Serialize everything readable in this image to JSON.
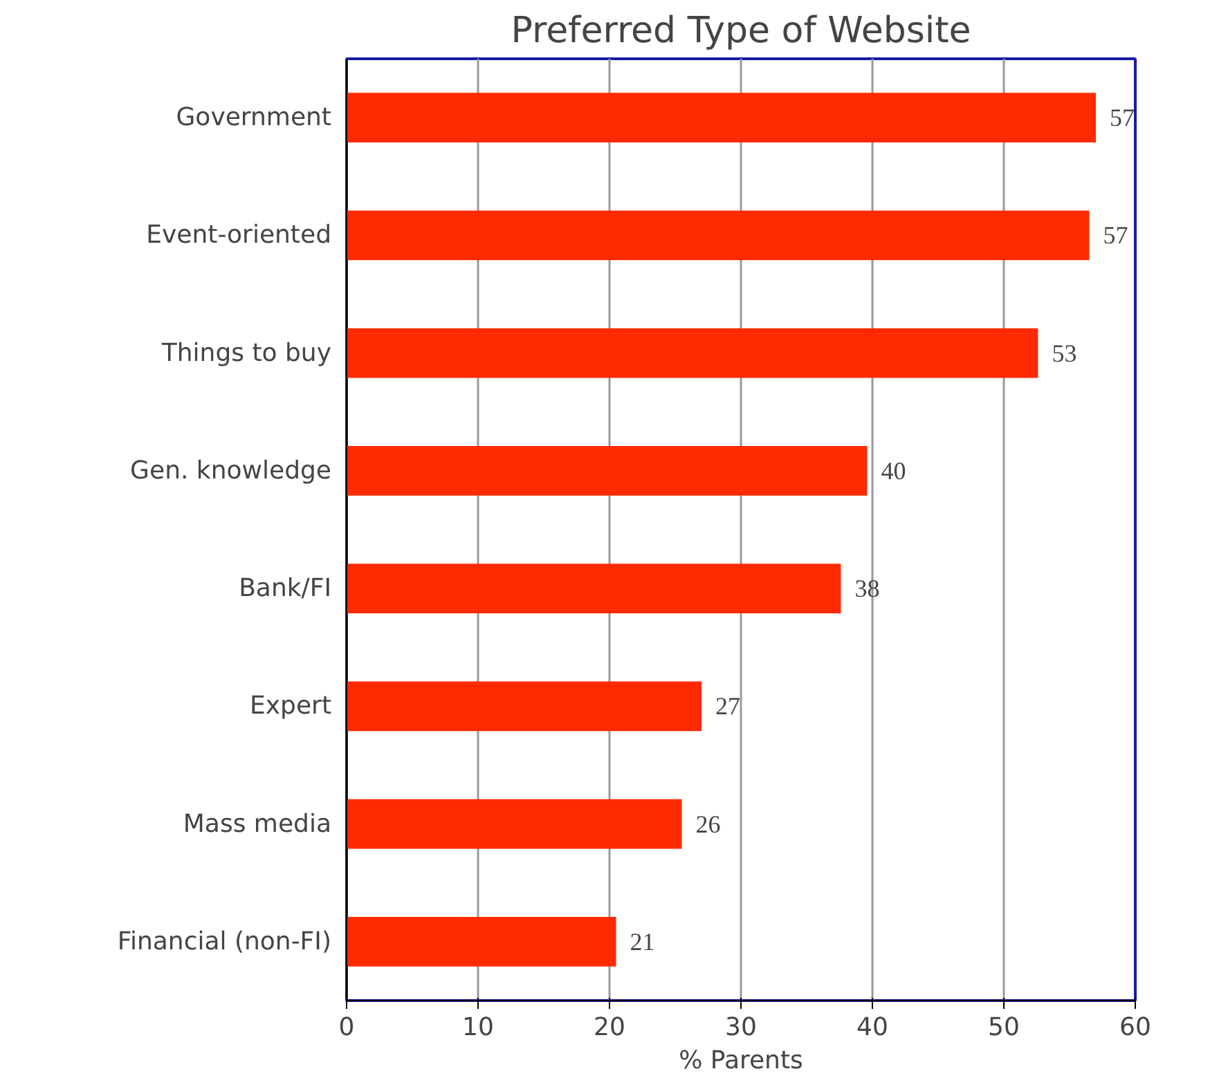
{
  "chart_data": {
    "type": "bar",
    "orientation": "horizontal",
    "title": "Preferred Type of Website",
    "xlabel": "% Parents",
    "categories": [
      "Government",
      "Event-oriented",
      "Things to buy",
      "Gen. knowledge",
      "Bank/FI",
      "Expert",
      "Mass media",
      "Financial (non-FI)"
    ],
    "values": [
      57.0,
      56.5,
      52.6,
      39.6,
      37.6,
      27.0,
      25.5,
      20.5
    ],
    "value_labels": [
      "57",
      "57",
      "53",
      "40",
      "38",
      "27",
      "26",
      "21"
    ],
    "color": "#ff2a00",
    "xlim": [
      0,
      60
    ],
    "xticks": [
      0,
      10,
      20,
      30,
      40,
      50,
      60
    ],
    "grid": "x"
  }
}
